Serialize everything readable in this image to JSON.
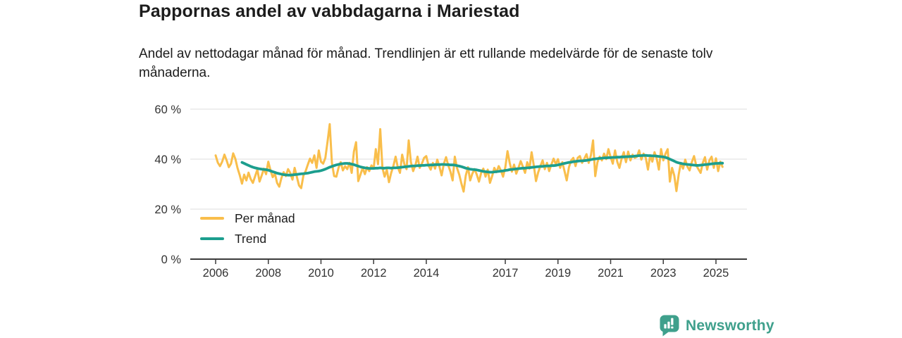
{
  "header": {
    "title": "Pappornas andel av vabbdagarna i Mariestad",
    "subtitle": "Andel av nettodagar månad för månad. Trendlinjen är ett rullande medelvärde för de senaste tolv månaderna."
  },
  "legend": {
    "items": [
      {
        "label": "Per månad",
        "color": "#F9BE4B"
      },
      {
        "label": "Trend",
        "color": "#1C9E8E"
      }
    ]
  },
  "footer": {
    "brand": "Newsworthy",
    "brand_color": "#3FA08C",
    "logo_icon": "bar-chart-bubble-icon"
  },
  "colors": {
    "background": "#ffffff",
    "grid": "#dcdcdc",
    "axis": "#3b3b3b",
    "axis_text": "#333333",
    "title_text": "#1c1c1c",
    "per_manad_line": "#F9BE4B",
    "trend_line": "#1C9E8E"
  },
  "chart_data": {
    "type": "line",
    "title": "Pappornas andel av vabbdagarna i Mariestad",
    "subtitle": "Andel av nettodagar månad för månad. Trendlinjen är ett rullande medelvärde för de senaste tolv månaderna.",
    "xlabel": "",
    "ylabel": "",
    "ylim": [
      0,
      60
    ],
    "yticks": [
      0,
      20,
      40,
      60
    ],
    "ytick_labels": [
      "0 %",
      "20 %",
      "40 %",
      "60 %"
    ],
    "xticks": [
      2006,
      2008,
      2010,
      2012,
      2014,
      2017,
      2019,
      2021,
      2023,
      2025
    ],
    "grid": "horizontal",
    "legend_position": "inside-lower-left",
    "x_unit": "month",
    "series": [
      {
        "name": "Per månad",
        "color": "#F9BE4B",
        "start_year": 2006,
        "start_month": 1,
        "values": [
          41.5,
          38.6,
          37.2,
          39.0,
          41.8,
          39.5,
          36.8,
          38.2,
          42.3,
          40.1,
          36.4,
          33.5,
          30.2,
          33.8,
          31.5,
          34.6,
          32.0,
          30.5,
          33.2,
          35.8,
          31.0,
          33.5,
          36.2,
          34.0,
          39.0,
          35.5,
          32.8,
          34.2,
          30.5,
          29.0,
          32.5,
          34.8,
          33.2,
          36.0,
          34.5,
          31.8,
          36.5,
          33.0,
          29.5,
          28.4,
          33.5,
          35.2,
          37.8,
          40.2,
          38.5,
          41.5,
          36.5,
          43.5,
          39.0,
          38.2,
          40.5,
          47.0,
          54.0,
          38.5,
          33.2,
          33.0,
          36.5,
          38.8,
          35.5,
          37.2,
          36.0,
          38.5,
          34.5,
          43.0,
          46.8,
          31.2,
          33.8,
          36.5,
          34.0,
          36.8,
          35.2,
          37.5,
          36.2,
          44.0,
          38.0,
          52.0,
          36.5,
          33.0,
          35.8,
          30.8,
          34.5,
          37.2,
          41.0,
          36.8,
          34.5,
          41.8,
          38.0,
          36.0,
          47.5,
          38.8,
          35.2,
          37.5,
          41.0,
          36.5,
          38.2,
          40.5,
          41.2,
          37.5,
          35.8,
          38.5,
          36.2,
          39.8,
          37.0,
          33.5,
          38.2,
          40.8,
          37.5,
          35.0,
          31.5,
          41.0,
          36.5,
          33.8,
          30.2,
          27.0,
          33.5,
          36.8,
          31.5,
          34.2,
          36.0,
          33.8,
          31.0,
          34.5,
          36.2,
          33.0,
          35.8,
          30.5,
          33.2,
          36.5,
          34.8,
          37.2,
          35.5,
          33.0,
          36.8,
          43.2,
          38.5,
          35.0,
          37.8,
          34.2,
          36.5,
          39.2,
          37.0,
          34.5,
          38.8,
          36.2,
          42.8,
          37.5,
          31.2,
          34.8,
          37.2,
          39.5,
          36.0,
          38.5,
          35.2,
          37.8,
          40.2,
          38.0,
          40.0,
          36.5,
          38.8,
          35.2,
          31.5,
          36.8,
          39.5,
          40.5,
          37.2,
          40.5,
          41.2,
          38.5,
          40.2,
          42.0,
          38.5,
          41.5,
          47.5,
          33.2,
          38.8,
          41.0,
          39.5,
          42.2,
          40.0,
          44.0,
          40.8,
          38.2,
          43.5,
          39.0,
          36.5,
          40.2,
          42.8,
          38.8,
          43.0,
          39.5,
          41.8,
          40.5,
          41.0,
          43.5,
          39.8,
          42.2,
          40.5,
          35.8,
          41.5,
          39.0,
          42.8,
          40.2,
          35.8,
          44.0,
          39.5,
          42.2,
          44.0,
          31.0,
          36.5,
          33.5,
          27.2,
          33.8,
          38.5,
          36.2,
          39.8,
          37.0,
          35.5,
          38.8,
          41.2,
          37.5,
          36.0,
          34.5,
          38.5,
          40.8,
          35.8,
          39.5,
          41.0,
          36.5,
          40.3,
          35.2,
          39.0,
          36.9
        ]
      },
      {
        "name": "Trend",
        "color": "#1C9E8E",
        "start_year": 2007,
        "start_month": 1,
        "values": [
          38.7,
          38.3,
          37.9,
          37.5,
          37.1,
          36.8,
          36.5,
          36.3,
          36.1,
          36.0,
          35.9,
          35.8,
          35.6,
          35.3,
          35.0,
          34.7,
          34.4,
          34.2,
          34.0,
          33.8,
          33.7,
          33.6,
          33.6,
          33.7,
          33.8,
          33.9,
          34.0,
          34.1,
          34.2,
          34.3,
          34.4,
          34.6,
          34.8,
          35.0,
          35.1,
          35.2,
          35.4,
          35.7,
          36.0,
          36.4,
          36.8,
          37.1,
          37.4,
          37.7,
          37.9,
          38.1,
          38.2,
          38.3,
          38.3,
          38.2,
          38.0,
          37.8,
          37.5,
          37.2,
          36.9,
          36.7,
          36.5,
          36.4,
          36.3,
          36.3,
          36.3,
          36.4,
          36.4,
          36.5,
          36.4,
          36.4,
          36.5,
          36.5,
          36.4,
          36.5,
          36.5,
          36.6,
          36.7,
          36.8,
          36.9,
          37.0,
          37.1,
          37.2,
          37.3,
          37.3,
          37.4,
          37.4,
          37.5,
          37.5,
          37.6,
          37.6,
          37.7,
          37.7,
          37.8,
          37.8,
          37.8,
          37.9,
          37.9,
          37.8,
          37.8,
          37.7,
          37.7,
          37.6,
          37.4,
          37.2,
          37.0,
          36.7,
          36.4,
          36.2,
          36.0,
          35.9,
          35.8,
          35.7,
          35.5,
          35.3,
          35.1,
          35.0,
          34.9,
          34.8,
          34.8,
          34.9,
          35.0,
          35.1,
          35.2,
          35.3,
          35.5,
          35.6,
          35.8,
          35.9,
          36.0,
          36.1,
          36.2,
          36.3,
          36.4,
          36.4,
          36.5,
          36.6,
          36.7,
          36.8,
          36.9,
          37.0,
          37.1,
          37.1,
          37.2,
          37.3,
          37.3,
          37.4,
          37.4,
          37.5,
          37.7,
          37.9,
          38.1,
          38.3,
          38.5,
          38.7,
          38.8,
          39.0,
          39.1,
          39.2,
          39.3,
          39.3,
          39.4,
          39.5,
          39.7,
          39.8,
          40.0,
          40.1,
          40.2,
          40.3,
          40.4,
          40.5,
          40.5,
          40.6,
          40.6,
          40.7,
          40.7,
          40.8,
          40.8,
          40.9,
          40.9,
          41.0,
          41.0,
          41.1,
          41.1,
          41.2,
          41.3,
          41.4,
          41.4,
          41.5,
          41.5,
          41.4,
          41.4,
          41.3,
          41.3,
          41.2,
          41.1,
          41.0,
          40.9,
          40.7,
          40.4,
          40.0,
          39.6,
          39.2,
          38.8,
          38.5,
          38.3,
          38.1,
          38.0,
          37.9,
          37.8,
          37.7,
          37.6,
          37.5,
          37.5,
          37.6,
          37.7,
          37.8,
          37.9,
          38.0,
          38.1,
          38.2,
          38.3,
          38.3,
          38.4,
          38.4
        ]
      }
    ]
  }
}
